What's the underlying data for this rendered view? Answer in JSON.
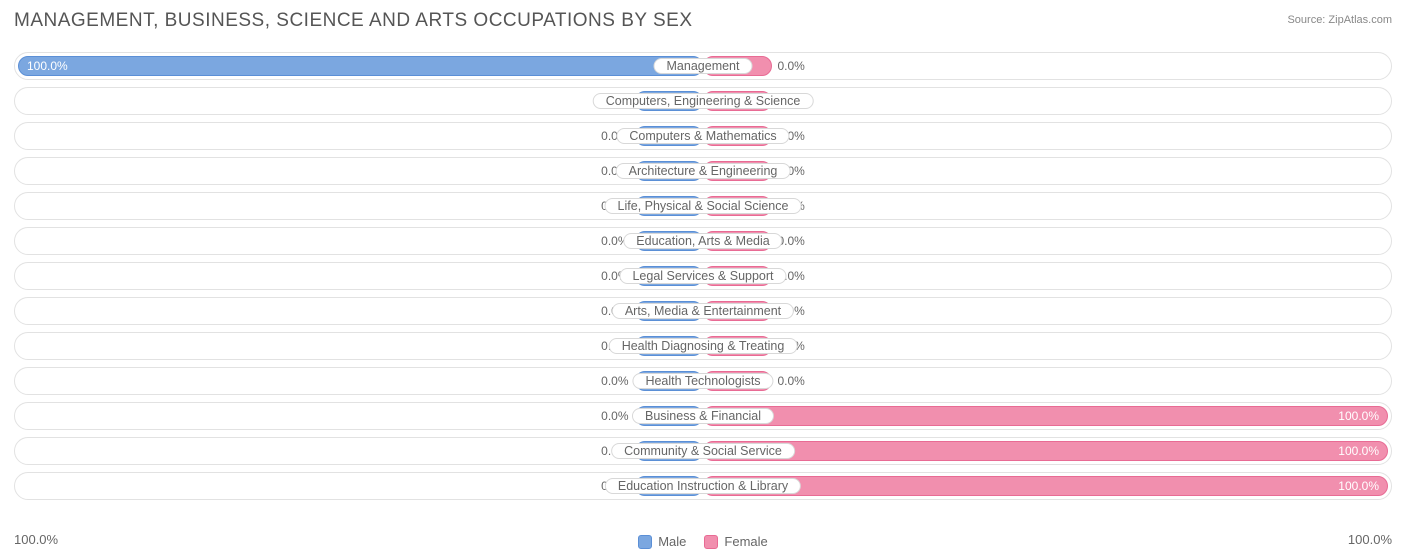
{
  "title": "MANAGEMENT, BUSINESS, SCIENCE AND ARTS OCCUPATIONS BY SEX",
  "source": "Source: ZipAtlas.com",
  "colors": {
    "male_fill": "#7ba7e0",
    "male_border": "#5b8fd6",
    "female_fill": "#f18fae",
    "female_border": "#e86b94",
    "row_border": "#e2e2e2",
    "text_muted": "#666666",
    "text_dark": "#555555",
    "background": "#ffffff"
  },
  "chart": {
    "type": "diverging-bar",
    "default_bar_pct": 10,
    "label_half_width_pct": 14,
    "rows": [
      {
        "label": "Management",
        "male": 100.0,
        "female": 0.0
      },
      {
        "label": "Computers, Engineering & Science",
        "male": 0.0,
        "female": 0.0
      },
      {
        "label": "Computers & Mathematics",
        "male": 0.0,
        "female": 0.0
      },
      {
        "label": "Architecture & Engineering",
        "male": 0.0,
        "female": 0.0
      },
      {
        "label": "Life, Physical & Social Science",
        "male": 0.0,
        "female": 0.0
      },
      {
        "label": "Education, Arts & Media",
        "male": 0.0,
        "female": 0.0
      },
      {
        "label": "Legal Services & Support",
        "male": 0.0,
        "female": 0.0
      },
      {
        "label": "Arts, Media & Entertainment",
        "male": 0.0,
        "female": 0.0
      },
      {
        "label": "Health Diagnosing & Treating",
        "male": 0.0,
        "female": 0.0
      },
      {
        "label": "Health Technologists",
        "male": 0.0,
        "female": 0.0
      },
      {
        "label": "Business & Financial",
        "male": 0.0,
        "female": 100.0
      },
      {
        "label": "Community & Social Service",
        "male": 0.0,
        "female": 100.0
      },
      {
        "label": "Education Instruction & Library",
        "male": 0.0,
        "female": 100.0
      }
    ]
  },
  "legend": {
    "male": "Male",
    "female": "Female"
  },
  "axis": {
    "left": "100.0%",
    "right": "100.0%"
  }
}
